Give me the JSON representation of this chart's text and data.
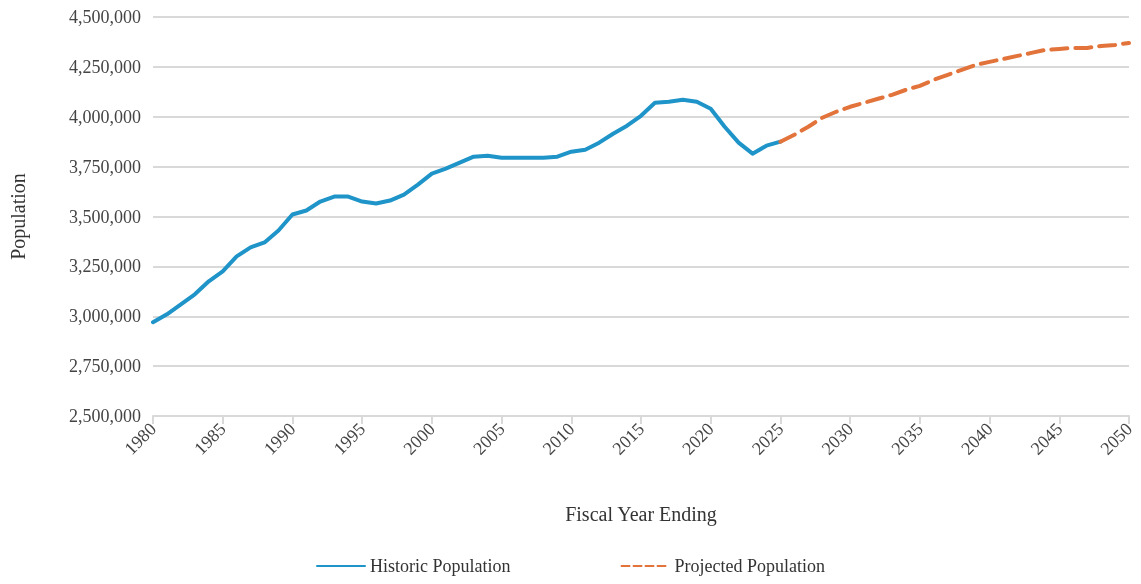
{
  "chart_data": {
    "type": "line",
    "xlabel": "Fiscal Year Ending",
    "ylabel": "Population",
    "xlim": [
      1980,
      2050
    ],
    "xticks": [
      1980,
      1985,
      1990,
      1995,
      2000,
      2005,
      2010,
      2015,
      2020,
      2025,
      2030,
      2035,
      2040,
      2045,
      2050
    ],
    "ylim": [
      2500000,
      4500000
    ],
    "yticks": [
      {
        "value": 2500000,
        "label": "2,500,000"
      },
      {
        "value": 2750000,
        "label": "2,750,000"
      },
      {
        "value": 3000000,
        "label": "3,000,000"
      },
      {
        "value": 3250000,
        "label": "3,250,000"
      },
      {
        "value": 3500000,
        "label": "3,500,000"
      },
      {
        "value": 3750000,
        "label": "3,750,000"
      },
      {
        "value": 4000000,
        "label": "4,000,000"
      },
      {
        "value": 4250000,
        "label": "4,250,000"
      },
      {
        "value": 4500000,
        "label": "4,500,000"
      }
    ],
    "grid": "y",
    "legend": "bottom",
    "marker": "none",
    "series": [
      {
        "name": "Historic Population",
        "color": "#1f94c8",
        "line_style": "solid",
        "x": [
          1980,
          1981,
          1982,
          1983,
          1984,
          1985,
          1986,
          1987,
          1988,
          1989,
          1990,
          1991,
          1992,
          1993,
          1994,
          1995,
          1996,
          1997,
          1998,
          1999,
          2000,
          2001,
          2002,
          2003,
          2004,
          2005,
          2006,
          2007,
          2008,
          2009,
          2010,
          2011,
          2012,
          2013,
          2014,
          2015,
          2016,
          2017,
          2018,
          2019,
          2020,
          2021,
          2022,
          2023,
          2024,
          2025
        ],
        "values": [
          2970000,
          3010000,
          3060000,
          3110000,
          3175000,
          3225000,
          3300000,
          3345000,
          3370000,
          3430000,
          3510000,
          3530000,
          3575000,
          3600000,
          3600000,
          3575000,
          3565000,
          3580000,
          3610000,
          3660000,
          3715000,
          3740000,
          3770000,
          3800000,
          3805000,
          3795000,
          3795000,
          3795000,
          3795000,
          3800000,
          3825000,
          3835000,
          3870000,
          3915000,
          3955000,
          4005000,
          4070000,
          4075000,
          4085000,
          4075000,
          4040000,
          3950000,
          3870000,
          3815000,
          3855000,
          3875000
        ]
      },
      {
        "name": "Projected Population",
        "color": "#e2733a",
        "line_style": "dashed",
        "x": [
          2025,
          2026,
          2027,
          2028,
          2029,
          2030,
          2031,
          2032,
          2033,
          2034,
          2035,
          2036,
          2037,
          2038,
          2039,
          2040,
          2041,
          2042,
          2043,
          2044,
          2045,
          2046,
          2047,
          2048,
          2049,
          2050
        ],
        "values": [
          3875000,
          3910000,
          3950000,
          3995000,
          4025000,
          4050000,
          4070000,
          4090000,
          4110000,
          4135000,
          4155000,
          4185000,
          4210000,
          4235000,
          4260000,
          4275000,
          4290000,
          4305000,
          4320000,
          4335000,
          4340000,
          4345000,
          4345000,
          4355000,
          4360000,
          4370000
        ]
      }
    ]
  }
}
